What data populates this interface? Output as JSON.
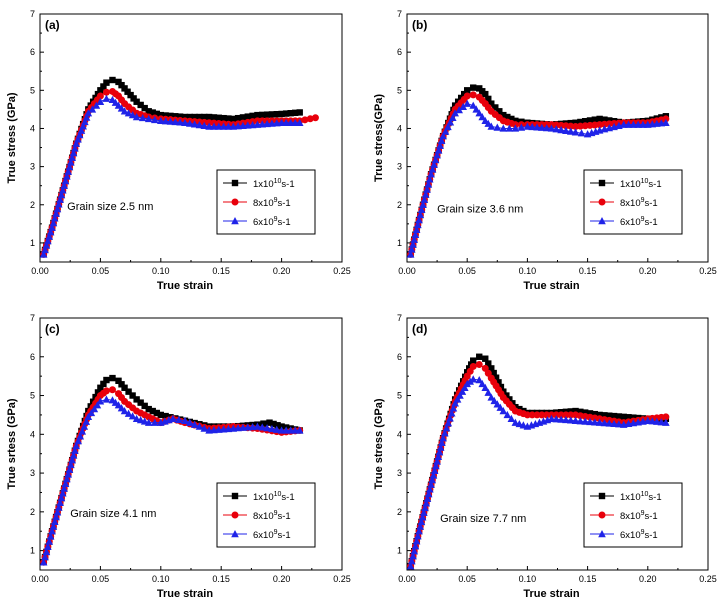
{
  "chart_data": [
    {
      "panel": "(a)",
      "type": "scatter",
      "xlabel": "True strain",
      "ylabel": "True stress (GPa)",
      "xlim": [
        0,
        0.25
      ],
      "ylim": [
        0.5,
        7
      ],
      "xticks": [
        "0.00",
        "0.05",
        "0.10",
        "0.15",
        "0.20",
        "0.25"
      ],
      "yticks": [
        "1",
        "2",
        "3",
        "4",
        "5",
        "6",
        "7"
      ],
      "annotation": "Grain size 2.5 nm",
      "legend_position": "center-right",
      "series": [
        {
          "name": "1x10^10 s-1",
          "color": "#000000",
          "marker": "square",
          "x": [
            0.003,
            0.01,
            0.02,
            0.03,
            0.04,
            0.05,
            0.055,
            0.06,
            0.065,
            0.07,
            0.08,
            0.09,
            0.1,
            0.12,
            0.14,
            0.16,
            0.18,
            0.2,
            0.215
          ],
          "y": [
            0.7,
            1.4,
            2.5,
            3.6,
            4.5,
            5.0,
            5.2,
            5.27,
            5.22,
            5.05,
            4.7,
            4.45,
            4.35,
            4.3,
            4.3,
            4.25,
            4.35,
            4.38,
            4.42
          ]
        },
        {
          "name": "8x10^9 s-1",
          "color": "#e8000b",
          "marker": "circle",
          "x": [
            0.003,
            0.01,
            0.02,
            0.03,
            0.04,
            0.05,
            0.055,
            0.06,
            0.065,
            0.07,
            0.08,
            0.09,
            0.1,
            0.12,
            0.14,
            0.16,
            0.18,
            0.2,
            0.215,
            0.228
          ],
          "y": [
            0.7,
            1.4,
            2.5,
            3.6,
            4.45,
            4.85,
            4.95,
            4.97,
            4.85,
            4.65,
            4.4,
            4.3,
            4.25,
            4.2,
            4.15,
            4.1,
            4.2,
            4.2,
            4.2,
            4.28
          ]
        },
        {
          "name": "6x10^9 s-1",
          "color": "#1f23e8",
          "marker": "triangle",
          "x": [
            0.003,
            0.01,
            0.02,
            0.03,
            0.04,
            0.05,
            0.055,
            0.06,
            0.065,
            0.07,
            0.08,
            0.09,
            0.1,
            0.12,
            0.14,
            0.16,
            0.18,
            0.2,
            0.215
          ],
          "y": [
            0.7,
            1.4,
            2.5,
            3.6,
            4.4,
            4.7,
            4.78,
            4.75,
            4.6,
            4.45,
            4.3,
            4.25,
            4.2,
            4.15,
            4.05,
            4.05,
            4.1,
            4.15,
            4.15
          ]
        }
      ]
    },
    {
      "panel": "(b)",
      "type": "scatter",
      "xlabel": "True strain",
      "ylabel": "True stress(GPa)",
      "xlim": [
        0,
        0.25
      ],
      "ylim": [
        0.5,
        7
      ],
      "xticks": [
        "0.00",
        "0.05",
        "0.10",
        "0.15",
        "0.20",
        "0.25"
      ],
      "yticks": [
        "1",
        "2",
        "3",
        "4",
        "5",
        "6",
        "7"
      ],
      "annotation": "Grain size 3.6 nm",
      "legend_position": "center-right",
      "series": [
        {
          "name": "1x10^10 s-1",
          "color": "#000000",
          "marker": "square",
          "x": [
            0.003,
            0.01,
            0.02,
            0.03,
            0.04,
            0.05,
            0.055,
            0.06,
            0.065,
            0.07,
            0.08,
            0.09,
            0.1,
            0.12,
            0.14,
            0.16,
            0.18,
            0.2,
            0.215
          ],
          "y": [
            0.7,
            1.6,
            2.8,
            3.8,
            4.6,
            5.0,
            5.07,
            5.05,
            4.9,
            4.65,
            4.35,
            4.2,
            4.15,
            4.1,
            4.15,
            4.25,
            4.15,
            4.2,
            4.32
          ]
        },
        {
          "name": "8x10^9 s-1",
          "color": "#e8000b",
          "marker": "circle",
          "x": [
            0.003,
            0.01,
            0.02,
            0.03,
            0.04,
            0.05,
            0.055,
            0.06,
            0.065,
            0.07,
            0.08,
            0.09,
            0.1,
            0.12,
            0.14,
            0.16,
            0.18,
            0.2,
            0.215
          ],
          "y": [
            0.7,
            1.6,
            2.8,
            3.8,
            4.5,
            4.85,
            4.88,
            4.82,
            4.65,
            4.45,
            4.2,
            4.1,
            4.1,
            4.1,
            4.05,
            4.1,
            4.15,
            4.15,
            4.25
          ]
        },
        {
          "name": "6x10^9 s-1",
          "color": "#1f23e8",
          "marker": "triangle",
          "x": [
            0.003,
            0.01,
            0.02,
            0.03,
            0.04,
            0.05,
            0.055,
            0.06,
            0.065,
            0.07,
            0.08,
            0.09,
            0.1,
            0.12,
            0.14,
            0.15,
            0.16,
            0.18,
            0.2,
            0.215
          ],
          "y": [
            0.7,
            1.6,
            2.8,
            3.8,
            4.4,
            4.65,
            4.6,
            4.4,
            4.2,
            4.05,
            4.0,
            4.0,
            4.05,
            4.0,
            3.9,
            3.85,
            3.95,
            4.1,
            4.1,
            4.15
          ]
        }
      ]
    },
    {
      "panel": "(c)",
      "type": "scatter",
      "xlabel": "True strain",
      "ylabel": "True srtess (GPa)",
      "xlim": [
        0,
        0.25
      ],
      "ylim": [
        0.5,
        7
      ],
      "xticks": [
        "0.00",
        "0.05",
        "0.10",
        "0.15",
        "0.20",
        "0.25"
      ],
      "yticks": [
        "1",
        "2",
        "3",
        "4",
        "5",
        "6",
        "7"
      ],
      "annotation": "Grain size 4.1 nm",
      "legend_position": "bottom-right",
      "series": [
        {
          "name": "1x10^10 s-1",
          "color": "#000000",
          "marker": "square",
          "x": [
            0.003,
            0.01,
            0.02,
            0.03,
            0.04,
            0.05,
            0.055,
            0.06,
            0.065,
            0.07,
            0.08,
            0.09,
            0.1,
            0.12,
            0.14,
            0.16,
            0.18,
            0.19,
            0.2,
            0.215
          ],
          "y": [
            0.7,
            1.5,
            2.6,
            3.7,
            4.6,
            5.2,
            5.4,
            5.45,
            5.38,
            5.2,
            4.9,
            4.65,
            4.5,
            4.35,
            4.2,
            4.2,
            4.25,
            4.3,
            4.2,
            4.1
          ]
        },
        {
          "name": "8x10^9 s-1",
          "color": "#e8000b",
          "marker": "circle",
          "x": [
            0.003,
            0.01,
            0.02,
            0.03,
            0.04,
            0.05,
            0.055,
            0.06,
            0.065,
            0.07,
            0.08,
            0.09,
            0.1,
            0.11,
            0.12,
            0.14,
            0.16,
            0.18,
            0.2,
            0.215
          ],
          "y": [
            0.7,
            1.5,
            2.6,
            3.7,
            4.5,
            5.0,
            5.12,
            5.15,
            5.05,
            4.85,
            4.6,
            4.45,
            4.3,
            4.4,
            4.3,
            4.15,
            4.2,
            4.15,
            4.05,
            4.1
          ]
        },
        {
          "name": "6x10^9 s-1",
          "color": "#1f23e8",
          "marker": "triangle",
          "x": [
            0.003,
            0.01,
            0.02,
            0.03,
            0.04,
            0.05,
            0.055,
            0.06,
            0.065,
            0.07,
            0.08,
            0.09,
            0.1,
            0.11,
            0.12,
            0.14,
            0.16,
            0.18,
            0.2,
            0.215
          ],
          "y": [
            0.7,
            1.5,
            2.6,
            3.7,
            4.45,
            4.85,
            4.9,
            4.88,
            4.75,
            4.6,
            4.4,
            4.3,
            4.3,
            4.4,
            4.35,
            4.1,
            4.15,
            4.2,
            4.1,
            4.1
          ]
        }
      ]
    },
    {
      "panel": "(d)",
      "type": "scatter",
      "xlabel": "True strain",
      "ylabel": "True stress (GPa)",
      "xlim": [
        0,
        0.25
      ],
      "ylim": [
        0.5,
        7
      ],
      "xticks": [
        "0.00",
        "0.05",
        "0.10",
        "0.15",
        "0.20",
        "0.25"
      ],
      "yticks": [
        "1",
        "2",
        "3",
        "4",
        "5",
        "6",
        "7"
      ],
      "annotation": "Grain size 7.7 nm",
      "legend_position": "bottom-right",
      "series": [
        {
          "name": "1x10^10 s-1",
          "color": "#000000",
          "marker": "square",
          "x": [
            0.003,
            0.01,
            0.02,
            0.03,
            0.04,
            0.05,
            0.055,
            0.06,
            0.065,
            0.07,
            0.08,
            0.09,
            0.1,
            0.12,
            0.14,
            0.16,
            0.18,
            0.2,
            0.215
          ],
          "y": [
            0.6,
            1.5,
            2.7,
            3.9,
            4.9,
            5.6,
            5.9,
            6.0,
            5.95,
            5.7,
            5.1,
            4.7,
            4.55,
            4.55,
            4.6,
            4.5,
            4.45,
            4.4,
            4.4
          ]
        },
        {
          "name": "8x10^9 s-1",
          "color": "#e8000b",
          "marker": "circle",
          "x": [
            0.003,
            0.01,
            0.02,
            0.03,
            0.04,
            0.05,
            0.055,
            0.06,
            0.065,
            0.07,
            0.08,
            0.09,
            0.1,
            0.12,
            0.14,
            0.16,
            0.18,
            0.2,
            0.215
          ],
          "y": [
            0.6,
            1.5,
            2.7,
            3.9,
            4.85,
            5.5,
            5.75,
            5.8,
            5.7,
            5.45,
            4.95,
            4.6,
            4.5,
            4.5,
            4.5,
            4.4,
            4.3,
            4.4,
            4.45
          ]
        },
        {
          "name": "6x10^9 s-1",
          "color": "#1f23e8",
          "marker": "triangle",
          "x": [
            0.003,
            0.01,
            0.02,
            0.03,
            0.04,
            0.05,
            0.055,
            0.06,
            0.065,
            0.07,
            0.08,
            0.09,
            0.1,
            0.11,
            0.12,
            0.14,
            0.16,
            0.18,
            0.2,
            0.215
          ],
          "y": [
            0.6,
            1.5,
            2.7,
            3.9,
            4.8,
            5.3,
            5.42,
            5.4,
            5.2,
            4.95,
            4.6,
            4.3,
            4.2,
            4.3,
            4.4,
            4.35,
            4.3,
            4.25,
            4.35,
            4.3
          ]
        }
      ]
    }
  ]
}
